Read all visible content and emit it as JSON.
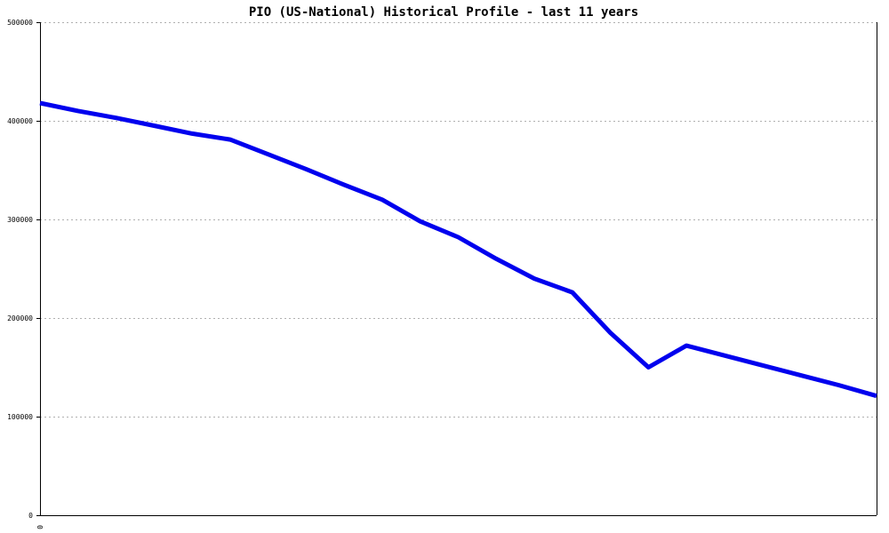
{
  "chart_data": {
    "type": "line",
    "title": "PIO (US-National) Historical Profile - last 11 years",
    "xlabel": "",
    "ylabel": "",
    "x_tick_labels": [
      "0"
    ],
    "y_ticks": [
      0,
      100000,
      200000,
      300000,
      400000,
      500000
    ],
    "y_tick_labels": [
      "0",
      "100000",
      "200000",
      "300000",
      "400000",
      "500000"
    ],
    "ylim": [
      0,
      500000
    ],
    "xlim": [
      0,
      22
    ],
    "grid": true,
    "series": [
      {
        "color": "#0000ee",
        "x": [
          0,
          1,
          2,
          3,
          4,
          5,
          6,
          7,
          8,
          9,
          10,
          11,
          12,
          13,
          14,
          15,
          16,
          17,
          18,
          19,
          20,
          21,
          22
        ],
        "values": [
          418000,
          410000,
          403000,
          395000,
          387000,
          381000,
          366000,
          351000,
          335000,
          320000,
          298000,
          282000,
          260000,
          240000,
          226000,
          185000,
          150000,
          172000,
          162000,
          152000,
          142000,
          132000,
          121000
        ]
      }
    ]
  }
}
